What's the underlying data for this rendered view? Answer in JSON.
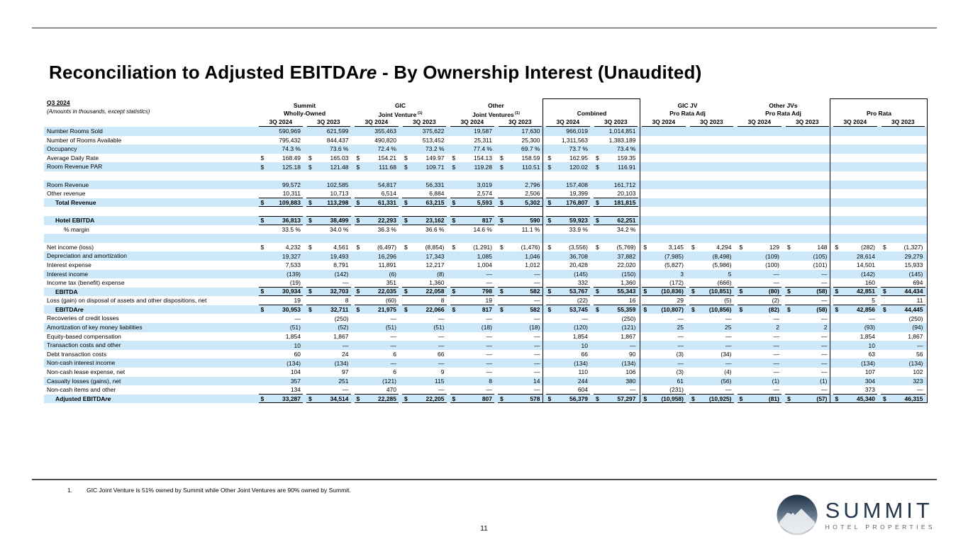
{
  "slide": {
    "title": {
      "main": "Reconciliation to Adjusted EBITDA",
      "em": "re",
      "rest": " - By Ownership Interest (Unaudited)"
    },
    "page_number": "11"
  },
  "colors": {
    "stripe": "#cde8f8",
    "rule": "#000000",
    "logo_navy": "#24374c"
  },
  "table": {
    "period_label": "Q3 2024",
    "subtitle": "(Amounts in thousands, except statistics)",
    "period_headers": [
      "3Q 2024",
      "3Q 2023"
    ],
    "groups": [
      {
        "line1": "Summit",
        "line2": "Wholly-Owned",
        "sup": "",
        "boxed": false
      },
      {
        "line1": "GIC",
        "line2": "Joint Venture",
        "sup": "(1)",
        "boxed": false
      },
      {
        "line1": "Other",
        "line2": "Joint Ventures",
        "sup": "(1)",
        "boxed": false
      },
      {
        "line1": "",
        "line2": "Combined",
        "sup": "",
        "boxed": true
      },
      {
        "line1": "GIC JV",
        "line2": "Pro Rata Adj",
        "sup": "",
        "boxed": false
      },
      {
        "line1": "Other JVs",
        "line2": "Pro Rata Adj",
        "sup": "",
        "boxed": false
      },
      {
        "line1": "",
        "line2": "Pro Rata",
        "sup": "",
        "boxed": true
      }
    ],
    "rows": [
      {
        "label": "Number Rooms Sold",
        "cells": [
          "590,969",
          "621,599",
          "355,463",
          "375,622",
          "19,587",
          "17,630",
          "966,019",
          "1,014,851",
          "",
          "",
          "",
          "",
          "",
          ""
        ]
      },
      {
        "label": "Number of Rooms Available",
        "cells": [
          "795,432",
          "844,437",
          "490,820",
          "513,452",
          "25,311",
          "25,300",
          "1,311,563",
          "1,383,189",
          "",
          "",
          "",
          "",
          "",
          ""
        ]
      },
      {
        "label": "Occupancy",
        "cells": [
          "74.3 %",
          "73.6 %",
          "72.4 %",
          "73.2 %",
          "77.4 %",
          "69.7 %",
          "73.7 %",
          "73.4 %",
          "",
          "",
          "",
          "",
          "",
          ""
        ]
      },
      {
        "label": "Average Daily Rate",
        "dollar": true,
        "cells": [
          "168.49",
          "165.03",
          "154.21",
          "149.97",
          "154.13",
          "158.59",
          "162.95",
          "159.35",
          "",
          "",
          "",
          "",
          "",
          ""
        ]
      },
      {
        "label": "Room Revenue PAR",
        "dollar": true,
        "cells": [
          "125.18",
          "121.48",
          "111.68",
          "109.71",
          "119.28",
          "110.51",
          "120.02",
          "116.91",
          "",
          "",
          "",
          "",
          "",
          ""
        ]
      },
      {
        "blank": true
      },
      {
        "label": "Room Revenue",
        "cells": [
          "99,572",
          "102,585",
          "54,817",
          "56,331",
          "3,019",
          "2,796",
          "157,408",
          "161,712",
          "",
          "",
          "",
          "",
          "",
          ""
        ]
      },
      {
        "label": "Other revenue",
        "rb": 8,
        "cells": [
          "10,311",
          "10,713",
          "6,514",
          "6,884",
          "2,574",
          "2,506",
          "19,399",
          "20,103",
          "",
          "",
          "",
          "",
          "",
          ""
        ]
      },
      {
        "label": "Total Revenue",
        "indent": 1,
        "bold": true,
        "dollar": true,
        "rb": 8,
        "cells": [
          "109,883",
          "113,298",
          "61,331",
          "63,215",
          "5,593",
          "5,302",
          "176,807",
          "181,815",
          "",
          "",
          "",
          "",
          "",
          ""
        ]
      },
      {
        "blank": true
      },
      {
        "label": "Hotel EBITDA",
        "indent": 1,
        "bold": true,
        "dollar": true,
        "rt": 8,
        "rb": 8,
        "cells": [
          "36,813",
          "38,499",
          "22,293",
          "23,162",
          "817",
          "590",
          "59,923",
          "62,251",
          "",
          "",
          "",
          "",
          "",
          ""
        ]
      },
      {
        "label": "% margin",
        "indent": 2,
        "cells": [
          "33.5 %",
          "34.0 %",
          "36.3 %",
          "36.6 %",
          "14.6 %",
          "11.1 %",
          "33.9 %",
          "34.2 %",
          "",
          "",
          "",
          "",
          "",
          ""
        ]
      },
      {
        "blank": true
      },
      {
        "label": "Net income (loss)",
        "dollar": true,
        "cells": [
          "4,232",
          "4,561",
          "(6,497)",
          "(8,854)",
          "(1,291)",
          "(1,476)",
          "(3,556)",
          "(5,769)",
          "3,145",
          "4,294",
          "129",
          "148",
          "(282)",
          "(1,327)"
        ]
      },
      {
        "label": "Depreciation and amortization",
        "cells": [
          "19,327",
          "19,493",
          "16,296",
          "17,343",
          "1,085",
          "1,046",
          "36,708",
          "37,882",
          "(7,985)",
          "(8,498)",
          "(109)",
          "(105)",
          "28,614",
          "29,279"
        ]
      },
      {
        "label": "Interest expense",
        "cells": [
          "7,533",
          "8,791",
          "11,891",
          "12,217",
          "1,004",
          "1,012",
          "20,428",
          "22,020",
          "(5,827)",
          "(5,986)",
          "(100)",
          "(101)",
          "14,501",
          "15,933"
        ]
      },
      {
        "label": "Interest income",
        "cells": [
          "(139)",
          "(142)",
          "(6)",
          "(8)",
          "—",
          "—",
          "(145)",
          "(150)",
          "3",
          "5",
          "—",
          "—",
          "(142)",
          "(145)"
        ]
      },
      {
        "label": "Income tax (benefit) expense",
        "rb": 14,
        "cells": [
          "(19)",
          "—",
          "351",
          "1,360",
          "—",
          "—",
          "332",
          "1,360",
          "(172)",
          "(666)",
          "—",
          "—",
          "160",
          "694"
        ]
      },
      {
        "label": "EBITDA",
        "indent": 1,
        "bold": true,
        "dollar": true,
        "rb": 14,
        "cells": [
          "30,934",
          "32,703",
          "22,035",
          "22,058",
          "798",
          "582",
          "53,767",
          "55,343",
          "(10,836)",
          "(10,851)",
          "(80)",
          "(58)",
          "42,851",
          "44,434"
        ]
      },
      {
        "label": "Loss (gain) on disposal of assets and other dispositions, net",
        "rb": 14,
        "cells": [
          "19",
          "8",
          "(60)",
          "8",
          "19",
          "—",
          "(22)",
          "16",
          "29",
          "(5)",
          "(2)",
          "—",
          "5",
          "11"
        ]
      },
      {
        "label": "EBITDA",
        "em": "re",
        "indent": 1,
        "bold": true,
        "dollar": true,
        "cells": [
          "30,953",
          "32,711",
          "21,975",
          "22,066",
          "817",
          "582",
          "53,745",
          "55,359",
          "(10,807)",
          "(10,856)",
          "(82)",
          "(58)",
          "42,856",
          "44,445"
        ]
      },
      {
        "label": "Recoveries of credit losses",
        "cells": [
          "—",
          "(250)",
          "—",
          "—",
          "—",
          "—",
          "—",
          "(250)",
          "—",
          "—",
          "—",
          "—",
          "—",
          "(250)"
        ]
      },
      {
        "label": "Amortization of key money liabilities",
        "cells": [
          "(51)",
          "(52)",
          "(51)",
          "(51)",
          "(18)",
          "(18)",
          "(120)",
          "(121)",
          "25",
          "25",
          "2",
          "2",
          "(93)",
          "(94)"
        ]
      },
      {
        "label": "Equity-based compensation",
        "cells": [
          "1,854",
          "1,867",
          "—",
          "—",
          "—",
          "—",
          "1,854",
          "1,867",
          "—",
          "—",
          "—",
          "—",
          "1,854",
          "1,867"
        ]
      },
      {
        "label": "Transaction costs and other",
        "cells": [
          "10",
          "—",
          "—",
          "—",
          "—",
          "—",
          "10",
          "—",
          "—",
          "—",
          "—",
          "—",
          "10",
          "—"
        ]
      },
      {
        "label": "Debt transaction costs",
        "cells": [
          "60",
          "24",
          "6",
          "66",
          "—",
          "—",
          "66",
          "90",
          "(3)",
          "(34)",
          "—",
          "—",
          "63",
          "56"
        ]
      },
      {
        "label": "Non-cash interest income",
        "cells": [
          "(134)",
          "(134)",
          "—",
          "—",
          "—",
          "—",
          "(134)",
          "(134)",
          "—",
          "—",
          "—",
          "—",
          "(134)",
          "(134)"
        ]
      },
      {
        "label": "Non-cash lease expense, net",
        "cells": [
          "104",
          "97",
          "6",
          "9",
          "—",
          "—",
          "110",
          "106",
          "(3)",
          "(4)",
          "—",
          "—",
          "107",
          "102"
        ]
      },
      {
        "label": "Casualty losses (gains), net",
        "cells": [
          "357",
          "251",
          "(121)",
          "115",
          "8",
          "14",
          "244",
          "380",
          "61",
          "(56)",
          "(1)",
          "(1)",
          "304",
          "323"
        ]
      },
      {
        "label": "Non-cash items and other",
        "rb": 14,
        "cells": [
          "134",
          "—",
          "470",
          "—",
          "—",
          "—",
          "604",
          "—",
          "(231)",
          "—",
          "—",
          "—",
          "373",
          "—"
        ]
      },
      {
        "label": "Adjusted EBITDA",
        "em": "re",
        "indent": 1,
        "bold": true,
        "dollar": true,
        "rb": 14,
        "cells": [
          "33,287",
          "34,514",
          "22,285",
          "22,205",
          "807",
          "578",
          "56,379",
          "57,297",
          "(10,958)",
          "(10,925)",
          "(81)",
          "(57)",
          "45,340",
          "46,315"
        ]
      }
    ]
  },
  "footnote": {
    "number": "1.",
    "text": "GIC Joint Venture is 51% owned by Summit while Other Joint Ventures are 90% owned by Summit."
  },
  "logo": {
    "brand": "SUMMIT",
    "tagline": "HOTEL PROPERTIES"
  }
}
